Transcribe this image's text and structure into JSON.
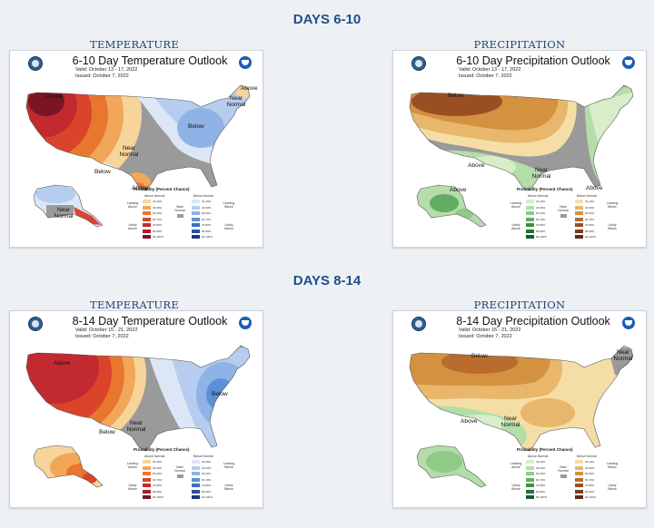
{
  "sections": [
    {
      "title": "DAYS 6-10",
      "panels": [
        {
          "caption": "TEMPERATURE",
          "title": "6-10 Day Temperature Outlook",
          "valid": "Valid:   October 13 - 17, 2022",
          "issued": "Issued:  October 7, 2022",
          "labels": [
            "Above",
            "Above",
            "Near Normal",
            "Below",
            "Near Normal",
            "Below",
            "Above",
            "Above",
            "Near Normal"
          ]
        },
        {
          "caption": "PRECIPITATION",
          "title": "6-10 Day Precipitation Outlook",
          "valid": "Valid:   October 13 - 17, 2022",
          "issued": "Issued:  October 7, 2022",
          "labels": [
            "Below",
            "Above",
            "Near Normal",
            "Above",
            "Above"
          ]
        }
      ]
    },
    {
      "title": "DAYS 8-14",
      "panels": [
        {
          "caption": "TEMPERATURE",
          "title": "8-14 Day Temperature Outlook",
          "valid": "Valid:   October 15 - 21, 2022",
          "issued": "Issued:  October 7, 2022",
          "labels": [
            "Above",
            "Below",
            "Near Normal",
            "Below"
          ]
        },
        {
          "caption": "PRECIPITATION",
          "title": "8-14 Day Precipitation Outlook",
          "valid": "Valid:   October 15 - 21, 2022",
          "issued": "Issued:  October 7, 2022",
          "labels": [
            "Below",
            "Near Normal",
            "Above",
            "Near Normal"
          ]
        }
      ]
    }
  ],
  "legend": {
    "title": "Probability (Percent Chance)",
    "above_normal": "Above Normal",
    "below_normal": "Below Normal",
    "wet_above": "Above Normal",
    "wet_below": "Below Normal",
    "leaning_above": "Leaning Above",
    "leaning_below": "Leaning Below",
    "likely_above": "Likely Above",
    "likely_below": "Likely Below",
    "near_normal": "Near Normal",
    "bins": [
      "33-40%",
      "40-50%",
      "50-60%",
      "60-70%",
      "70-80%",
      "80-90%",
      "90-100%"
    ]
  },
  "colors": {
    "title": "#1f4e8c",
    "above": [
      "#f6d49a",
      "#f2a65a",
      "#e9762f",
      "#d9442b",
      "#c22a30",
      "#a41d2b",
      "#7a1525"
    ],
    "below": [
      "#dbe7f7",
      "#b6cdef",
      "#8fb3e6",
      "#5d91d7",
      "#3b6fc2",
      "#2c4fa0",
      "#1f3380"
    ],
    "wet": [
      "#d7eec9",
      "#b4ddaa",
      "#8fca86",
      "#62ad62",
      "#3c8f46",
      "#23703a",
      "#155b2e"
    ],
    "dry": [
      "#f5dea6",
      "#e8b76b",
      "#d4913f",
      "#b96c2d",
      "#9a4f22",
      "#7c3a1d",
      "#5e2a18"
    ],
    "near_normal": "#9a9a9a"
  }
}
